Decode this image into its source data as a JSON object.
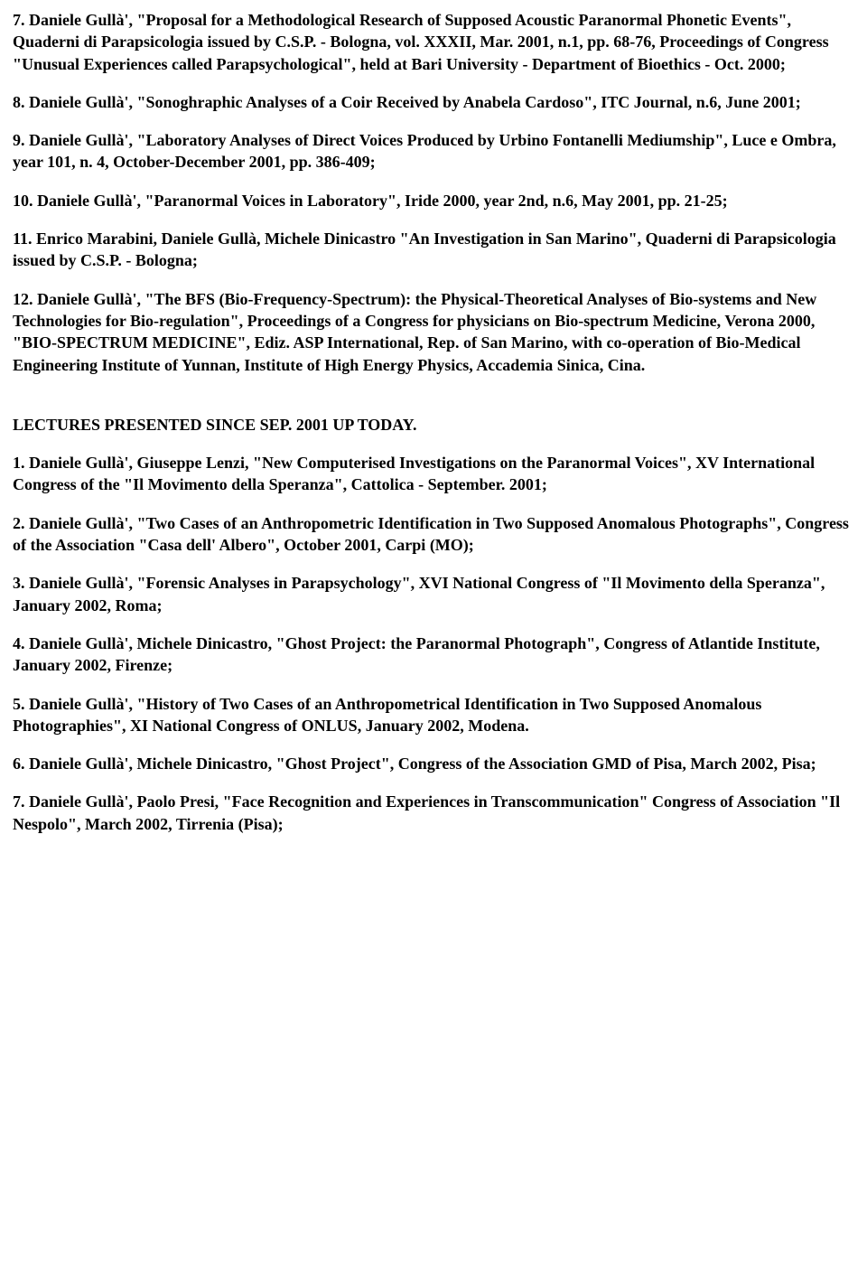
{
  "styling": {
    "font_family": "Times New Roman",
    "font_size_pt": 13,
    "font_weight": "bold",
    "text_color": "#000000",
    "background_color": "#ffffff",
    "line_height": 1.35
  },
  "paragraphs": [
    "7. Daniele Gullà', \"Proposal for a Methodological Research of Supposed Acoustic Paranormal Phonetic Events\", Quaderni di Parapsicologia issued by C.S.P. - Bologna, vol. XXXII, Mar. 2001, n.1, pp. 68-76, Proceedings of Congress \"Unusual Experiences called Parapsychological\", held at Bari University - Department of Bioethics - Oct. 2000;",
    "8. Daniele Gullà', \"Sonoghraphic Analyses of a Coir Received by Anabela Cardoso\", ITC Journal, n.6, June 2001;",
    "9. Daniele Gullà', \"Laboratory Analyses of Direct Voices Produced by Urbino Fontanelli Mediumship\", Luce e Ombra, year 101, n. 4, October-December 2001, pp. 386-409;",
    "10. Daniele Gullà', \"Paranormal Voices in Laboratory\", Iride 2000, year 2nd, n.6, May 2001, pp. 21-25;",
    "11. Enrico Marabini, Daniele Gullà, Michele Dinicastro \"An Investigation in San Marino\", Quaderni di Parapsicologia issued by C.S.P. - Bologna;",
    "12. Daniele Gullà', \"The BFS (Bio-Frequency-Spectrum): the Physical-Theoretical Analyses of Bio-systems and New Technologies for Bio-regulation\", Proceedings of a Congress for physicians on Bio-spectrum Medicine, Verona 2000, \"BIO-SPECTRUM MEDICINE\", Ediz. ASP International, Rep. of San Marino, with co-operation of Bio-Medical Engineering Institute of Yunnan, Institute of High Energy Physics, Accademia Sinica, Cina."
  ],
  "section_heading": "LECTURES PRESENTED SINCE SEP. 2001 UP TODAY.",
  "lectures": [
    "1. Daniele Gullà', Giuseppe Lenzi, \"New Computerised Investigations on the Paranormal Voices\", XV International Congress of the \"Il Movimento della Speranza\", Cattolica - September. 2001;",
    "2. Daniele Gullà', \"Two Cases of an Anthropometric Identification in Two Supposed Anomalous Photographs\", Congress of the Association \"Casa dell' Albero\", October 2001, Carpi (MO);",
    "3. Daniele Gullà', \"Forensic Analyses in Parapsychology\", XVI National Congress of \"Il Movimento della Speranza\", January 2002, Roma;",
    "4. Daniele Gullà', Michele Dinicastro, \"Ghost Project: the Paranormal Photograph\", Congress of Atlantide Institute, January 2002, Firenze;",
    "5. Daniele Gullà', \"History of Two Cases of an Anthropometrical Identification in Two Supposed Anomalous Photographies\", XI National Congress of ONLUS, January 2002, Modena.",
    "6. Daniele Gullà', Michele Dinicastro, \"Ghost Project\", Congress of the Association GMD of Pisa, March 2002, Pisa;",
    "7. Daniele Gullà', Paolo Presi, \"Face Recognition and Experiences in Transcommunication\" Congress of Association \"Il Nespolo\", March 2002, Tirrenia (Pisa);"
  ]
}
